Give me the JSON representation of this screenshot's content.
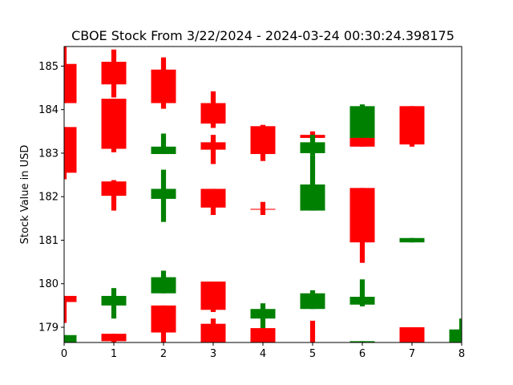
{
  "chart_data": {
    "type": "candlestick",
    "title": "CBOE Stock From 3/22/2024 - 2024-03-24 00:30:24.398175",
    "xlabel": "",
    "ylabel": "Stock Value in USD",
    "xlim": [
      0,
      8
    ],
    "ylim": [
      178.65,
      185.45
    ],
    "x_ticks": [
      "0",
      "1",
      "2",
      "3",
      "4",
      "5",
      "6",
      "7",
      "8"
    ],
    "y_ticks": [
      "179",
      "180",
      "181",
      "182",
      "183",
      "184",
      "185"
    ],
    "grid": false,
    "up_color": "#008000",
    "down_color": "#ff0000",
    "candles": [
      {
        "x": 0.0,
        "open": 185.05,
        "close": 184.15,
        "high": 185.45,
        "low": 184.15,
        "direction": "down"
      },
      {
        "x": 0.0,
        "open": 183.6,
        "close": 182.55,
        "high": 183.6,
        "low": 182.4,
        "direction": "down"
      },
      {
        "x": 0.0,
        "open": 179.72,
        "close": 179.58,
        "high": 179.72,
        "low": 179.1,
        "direction": "down"
      },
      {
        "x": 0.0,
        "open": 178.65,
        "close": 178.82,
        "high": 178.82,
        "low": 178.65,
        "direction": "up"
      },
      {
        "x": 1.0,
        "open": 185.1,
        "close": 184.58,
        "high": 185.38,
        "low": 184.28,
        "direction": "down"
      },
      {
        "x": 1.0,
        "open": 184.25,
        "close": 183.1,
        "high": 184.25,
        "low": 183.02,
        "direction": "down"
      },
      {
        "x": 1.0,
        "open": 182.35,
        "close": 182.02,
        "high": 182.38,
        "low": 181.68,
        "direction": "down"
      },
      {
        "x": 1.0,
        "open": 179.5,
        "close": 179.72,
        "high": 179.9,
        "low": 179.2,
        "direction": "up"
      },
      {
        "x": 1.0,
        "open": 178.85,
        "close": 178.68,
        "high": 178.85,
        "low": 178.65,
        "direction": "down"
      },
      {
        "x": 2.0,
        "open": 184.92,
        "close": 184.15,
        "high": 185.2,
        "low": 184.02,
        "direction": "down"
      },
      {
        "x": 2.0,
        "open": 182.98,
        "close": 183.15,
        "high": 183.45,
        "low": 182.98,
        "direction": "up"
      },
      {
        "x": 2.0,
        "open": 181.95,
        "close": 182.18,
        "high": 182.62,
        "low": 181.42,
        "direction": "up"
      },
      {
        "x": 2.0,
        "open": 179.78,
        "close": 180.15,
        "high": 180.3,
        "low": 179.78,
        "direction": "up"
      },
      {
        "x": 2.0,
        "open": 179.5,
        "close": 178.88,
        "high": 179.5,
        "low": 178.65,
        "direction": "down"
      },
      {
        "x": 3.0,
        "open": 184.15,
        "close": 183.68,
        "high": 184.42,
        "low": 183.58,
        "direction": "down"
      },
      {
        "x": 3.0,
        "open": 183.25,
        "close": 183.08,
        "high": 183.42,
        "low": 182.75,
        "direction": "down"
      },
      {
        "x": 3.0,
        "open": 182.18,
        "close": 181.75,
        "high": 182.18,
        "low": 181.58,
        "direction": "down"
      },
      {
        "x": 3.0,
        "open": 180.05,
        "close": 179.4,
        "high": 180.05,
        "low": 179.35,
        "direction": "down"
      },
      {
        "x": 3.0,
        "open": 179.08,
        "close": 178.65,
        "high": 179.2,
        "low": 178.65,
        "direction": "down"
      },
      {
        "x": 4.0,
        "open": 183.62,
        "close": 182.98,
        "high": 183.65,
        "low": 182.82,
        "direction": "down"
      },
      {
        "x": 4.0,
        "open": 181.72,
        "close": 181.7,
        "high": 181.88,
        "low": 181.58,
        "direction": "down"
      },
      {
        "x": 4.0,
        "open": 179.2,
        "close": 179.42,
        "high": 179.55,
        "low": 178.88,
        "direction": "up"
      },
      {
        "x": 4.0,
        "open": 178.98,
        "close": 178.65,
        "high": 178.98,
        "low": 178.65,
        "direction": "down"
      },
      {
        "x": 5.0,
        "open": 183.42,
        "close": 183.35,
        "high": 183.5,
        "low": 183.35,
        "direction": "down"
      },
      {
        "x": 5.0,
        "open": 183.0,
        "close": 183.25,
        "high": 183.42,
        "low": 182.95,
        "direction": "up"
      },
      {
        "x": 5.0,
        "open": 181.68,
        "close": 182.28,
        "high": 182.95,
        "low": 181.68,
        "direction": "up"
      },
      {
        "x": 5.0,
        "open": 179.42,
        "close": 179.78,
        "high": 179.85,
        "low": 179.42,
        "direction": "up"
      },
      {
        "x": 5.0,
        "open": 178.65,
        "close": 178.65,
        "high": 179.15,
        "low": 178.65,
        "direction": "down"
      },
      {
        "x": 6.0,
        "open": 183.35,
        "close": 184.08,
        "high": 184.12,
        "low": 183.3,
        "direction": "up"
      },
      {
        "x": 6.0,
        "open": 183.35,
        "close": 183.15,
        "high": 183.35,
        "low": 183.15,
        "direction": "down"
      },
      {
        "x": 6.0,
        "open": 182.2,
        "close": 180.95,
        "high": 182.2,
        "low": 180.48,
        "direction": "down"
      },
      {
        "x": 6.0,
        "open": 179.52,
        "close": 179.7,
        "high": 180.1,
        "low": 179.48,
        "direction": "up"
      },
      {
        "x": 6.0,
        "open": 178.65,
        "close": 178.68,
        "high": 178.68,
        "low": 178.65,
        "direction": "up"
      },
      {
        "x": 7.0,
        "open": 184.08,
        "close": 183.2,
        "high": 184.08,
        "low": 183.15,
        "direction": "down"
      },
      {
        "x": 7.0,
        "open": 180.95,
        "close": 181.05,
        "high": 181.05,
        "low": 180.95,
        "direction": "up"
      },
      {
        "x": 7.0,
        "open": 179.0,
        "close": 178.65,
        "high": 179.0,
        "low": 178.65,
        "direction": "down"
      },
      {
        "x": 8.0,
        "open": 178.65,
        "close": 178.95,
        "high": 179.2,
        "low": 178.65,
        "direction": "up"
      }
    ]
  }
}
